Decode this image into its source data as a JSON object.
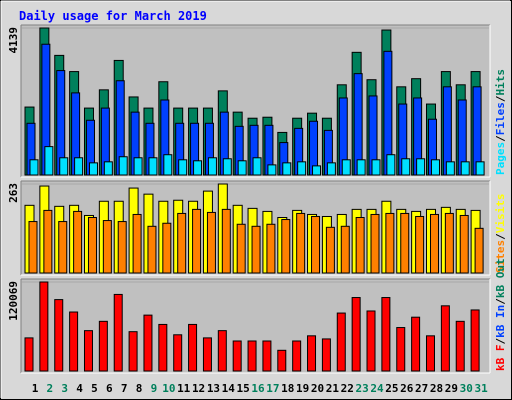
{
  "title": "Daily usage for March 2019",
  "separator": "/",
  "day_label_colors": [
    "#000000",
    "#00805c",
    "#00805c",
    "#000000",
    "#000000",
    "#000000",
    "#000000",
    "#000000",
    "#00805c",
    "#00805c",
    "#000000",
    "#000000",
    "#000000",
    "#000000",
    "#000000",
    "#00805c",
    "#00805c",
    "#000000",
    "#000000",
    "#000000",
    "#000000",
    "#000000",
    "#00805c",
    "#00805c",
    "#000000",
    "#000000",
    "#000000",
    "#000000",
    "#000000",
    "#00805c",
    "#00805c"
  ],
  "chart_data": [
    {
      "type": "bar",
      "ylim": [
        0,
        4139
      ],
      "yticks": [
        4139
      ],
      "series": [
        {
          "name": "Hits",
          "color": "#00805c",
          "values": [
            1913,
            4139,
            3368,
            2912,
            1884,
            2398,
            3226,
            2198,
            1884,
            2626,
            1884,
            1884,
            1884,
            2369,
            1770,
            1599,
            1627,
            1199,
            1599,
            1741,
            1599,
            2540,
            3454,
            2683,
            4082,
            2483,
            2712,
            1998,
            2912,
            2540,
            2912
          ]
        },
        {
          "name": "Files",
          "color": "#0040ff",
          "values": [
            1456,
            3682,
            2940,
            2312,
            1541,
            1884,
            2654,
            1770,
            1456,
            2112,
            1456,
            1456,
            1456,
            1770,
            1370,
            1399,
            1399,
            913,
            1313,
            1513,
            1256,
            2169,
            2854,
            2226,
            3482,
            1998,
            2169,
            1570,
            2483,
            2112,
            2483
          ]
        },
        {
          "name": "Pages",
          "color": "#00e0ff",
          "values": [
            428,
            799,
            485,
            485,
            342,
            371,
            514,
            485,
            485,
            571,
            428,
            400,
            485,
            457,
            400,
            485,
            285,
            342,
            371,
            257,
            342,
            428,
            428,
            428,
            571,
            457,
            457,
            428,
            371,
            371,
            371
          ]
        }
      ]
    },
    {
      "type": "bar",
      "ylim": [
        0,
        263
      ],
      "yticks": [
        263
      ],
      "series": [
        {
          "name": "Visits",
          "color": "#ffff00",
          "values": [
            200,
            257,
            197,
            200,
            170,
            212,
            212,
            251,
            233,
            212,
            215,
            212,
            242,
            263,
            200,
            191,
            182,
            164,
            185,
            173,
            167,
            173,
            188,
            188,
            212,
            188,
            182,
            188,
            194,
            188,
            185
          ]
        },
        {
          "name": "Sites",
          "color": "#ff8000",
          "values": [
            152,
            185,
            152,
            182,
            164,
            155,
            152,
            173,
            138,
            147,
            176,
            188,
            179,
            188,
            144,
            138,
            144,
            158,
            176,
            167,
            135,
            138,
            164,
            173,
            176,
            176,
            167,
            173,
            176,
            170,
            132
          ]
        }
      ]
    },
    {
      "type": "bar",
      "ylim": [
        0,
        120069
      ],
      "yticks": [
        120069
      ],
      "categories": [
        "1",
        "2",
        "3",
        "4",
        "5",
        "6",
        "7",
        "8",
        "9",
        "10",
        "11",
        "12",
        "13",
        "14",
        "15",
        "16",
        "17",
        "18",
        "19",
        "20",
        "21",
        "22",
        "23",
        "24",
        "25",
        "26",
        "27",
        "28",
        "29",
        "30",
        "31"
      ],
      "series": [
        {
          "name": "kB F",
          "color": "#ff0000",
          "values": [
            44672,
            120069,
            96324,
            79572,
            54444,
            67008,
            103304,
            53048,
            75384,
            62820,
            48860,
            62820,
            44672,
            54444,
            40484,
            40484,
            40484,
            27920,
            40484,
            47464,
            43276,
            78176,
            99116,
            80968,
            99116,
            58632,
            72592,
            47464,
            87948,
            67008,
            82364
          ]
        }
      ],
      "other_legend": [
        {
          "name": "kB In",
          "color": "#0040ff"
        },
        {
          "name": "kB Out",
          "color": "#00805c"
        }
      ]
    }
  ]
}
